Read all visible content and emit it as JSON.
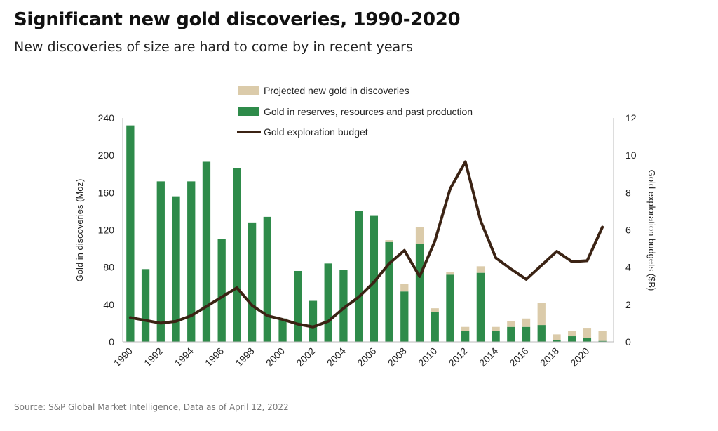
{
  "title": "Significant new gold discoveries, 1990-2020",
  "subtitle": "New discoveries of size are hard to come by in recent years",
  "source": "Source: S&P Global Market Intelligence, Data as of April 12, 2022",
  "chart_data": {
    "type": "bar",
    "stacked": true,
    "years": [
      1990,
      1991,
      1992,
      1993,
      1994,
      1995,
      1996,
      1997,
      1998,
      1999,
      2000,
      2001,
      2002,
      2003,
      2004,
      2005,
      2006,
      2007,
      2008,
      2009,
      2010,
      2011,
      2012,
      2013,
      2014,
      2015,
      2016,
      2017,
      2018,
      2019,
      2020,
      2021
    ],
    "x_tick_labels": [
      "1990",
      "1992",
      "1994",
      "1996",
      "1998",
      "2000",
      "2002",
      "2004",
      "2006",
      "2008",
      "2010",
      "2012",
      "2014",
      "2016",
      "2018",
      "2020"
    ],
    "series": [
      {
        "name": "Gold in reserves, resources and past production",
        "color": "#2e8b4a",
        "axis": "left",
        "values": [
          232,
          78,
          172,
          156,
          172,
          193,
          110,
          186,
          128,
          134,
          25,
          76,
          44,
          84,
          77,
          140,
          135,
          107,
          54,
          105,
          32,
          72,
          12,
          74,
          12,
          16,
          16,
          18,
          2,
          6,
          4,
          1
        ]
      },
      {
        "name": "Projected new gold in discoveries",
        "color": "#dbcbaa",
        "axis": "left",
        "values": [
          0,
          0,
          0,
          0,
          0,
          0,
          0,
          0,
          0,
          0,
          0,
          0,
          0,
          0,
          0,
          0,
          0,
          2,
          8,
          18,
          4,
          3,
          4,
          7,
          4,
          6,
          9,
          24,
          6,
          6,
          11,
          11
        ]
      },
      {
        "name": "Gold exploration budget",
        "color": "#3b2314",
        "axis": "right",
        "type": "line",
        "values": [
          1.3,
          1.15,
          1.0,
          1.1,
          1.4,
          1.9,
          2.4,
          2.9,
          1.95,
          1.4,
          1.2,
          0.95,
          0.8,
          1.1,
          1.8,
          2.4,
          3.2,
          4.2,
          4.9,
          3.5,
          5.4,
          8.2,
          9.65,
          6.5,
          4.5,
          3.9,
          3.35,
          4.1,
          4.85,
          4.3,
          4.35,
          6.15
        ]
      }
    ],
    "y_left": {
      "label": "Gold in discoveries (Moz)",
      "min": 0,
      "max": 240,
      "ticks": [
        "0",
        "40",
        "80",
        "120",
        "160",
        "200",
        "240"
      ]
    },
    "y_right": {
      "label": "Gold exploration budgets ($B)",
      "min": 0,
      "max": 12,
      "ticks": [
        "0",
        "2",
        "4",
        "6",
        "8",
        "10",
        "12"
      ]
    },
    "legend": {
      "position": "top-center",
      "entries": [
        "Projected new gold in discoveries",
        "Gold in reserves, resources and past production",
        "Gold exploration budget"
      ]
    },
    "grid": false
  }
}
